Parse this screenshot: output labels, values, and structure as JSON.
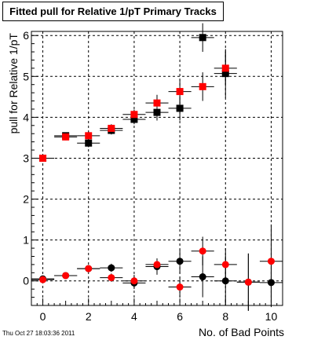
{
  "footer": {
    "timestamp": "Thu Oct 27 18:03:36 2011"
  },
  "chart_data": {
    "type": "scatter",
    "title": "Fitted pull for Relative 1/pT Primary Tracks",
    "xlabel": "No. of Bad Points",
    "ylabel": "pull for Relative 1/pT",
    "xlim": [
      -0.5,
      10.5
    ],
    "ylim": [
      -0.6,
      6.1
    ],
    "xticks": [
      0,
      2,
      4,
      6,
      8,
      10
    ],
    "yticks": [
      0,
      1,
      2,
      3,
      4,
      5,
      6
    ],
    "grid": true,
    "colors": {
      "black": "#000000",
      "red": "#ff0000"
    },
    "series": [
      {
        "marker": "square",
        "color": "#000000",
        "points": [
          {
            "x": 0,
            "y": 3.0,
            "ey": 0.05
          },
          {
            "x": 1,
            "y": 3.55,
            "ey": 0.08
          },
          {
            "x": 2,
            "y": 3.37,
            "ey": 0.1
          },
          {
            "x": 3,
            "y": 3.68,
            "ey": 0.1
          },
          {
            "x": 4,
            "y": 3.95,
            "ey": 0.12
          },
          {
            "x": 5,
            "y": 4.12,
            "ey": 0.2
          },
          {
            "x": 6,
            "y": 4.22,
            "ey": 0.3
          },
          {
            "x": 7,
            "y": 5.95,
            "ey": 0.35
          },
          {
            "x": 8,
            "y": 5.07,
            "ey": 0.6
          }
        ]
      },
      {
        "marker": "square",
        "color": "#ff0000",
        "points": [
          {
            "x": 0,
            "y": 3.0,
            "ey": 0.05
          },
          {
            "x": 1,
            "y": 3.52,
            "ey": 0.08
          },
          {
            "x": 2,
            "y": 3.55,
            "ey": 0.1
          },
          {
            "x": 3,
            "y": 3.73,
            "ey": 0.1
          },
          {
            "x": 4,
            "y": 4.07,
            "ey": 0.12
          },
          {
            "x": 5,
            "y": 4.35,
            "ey": 0.2
          },
          {
            "x": 6,
            "y": 4.63,
            "ey": 0.3
          },
          {
            "x": 7,
            "y": 4.75,
            "ey": 0.35
          },
          {
            "x": 8,
            "y": 5.2,
            "ey": 0.4
          }
        ]
      },
      {
        "marker": "circle",
        "color": "#000000",
        "points": [
          {
            "x": 0,
            "y": 0.05,
            "ey": 0.03
          },
          {
            "x": 1,
            "y": 0.13,
            "ey": 0.05
          },
          {
            "x": 2,
            "y": 0.3,
            "ey": 0.08
          },
          {
            "x": 3,
            "y": 0.32,
            "ey": 0.1
          },
          {
            "x": 4,
            "y": -0.05,
            "ey": 0.15
          },
          {
            "x": 5,
            "y": 0.35,
            "ey": 0.2
          },
          {
            "x": 6,
            "y": 0.48,
            "ey": 0.3
          },
          {
            "x": 7,
            "y": 0.1,
            "ey": 0.5
          },
          {
            "x": 8,
            "y": 0.0,
            "ey": 0.6
          },
          {
            "x": 9,
            "y": -0.03,
            "ey": 0.7
          },
          {
            "x": 10,
            "y": -0.04,
            "ey": 0.6
          }
        ]
      },
      {
        "marker": "circle",
        "color": "#ff0000",
        "points": [
          {
            "x": 0,
            "y": 0.03,
            "ey": 0.03
          },
          {
            "x": 1,
            "y": 0.13,
            "ey": 0.05
          },
          {
            "x": 2,
            "y": 0.3,
            "ey": 0.08
          },
          {
            "x": 3,
            "y": 0.08,
            "ey": 0.1
          },
          {
            "x": 4,
            "y": 0.0,
            "ey": 0.15
          },
          {
            "x": 5,
            "y": 0.4,
            "ey": 0.15
          },
          {
            "x": 6,
            "y": -0.15,
            "ey": 0.25
          },
          {
            "x": 7,
            "y": 0.73,
            "ey": 0.35
          },
          {
            "x": 8,
            "y": 0.4,
            "ey": 0.4
          },
          {
            "x": 9,
            "y": -0.03,
            "ey": 0.7
          },
          {
            "x": 10,
            "y": 0.48,
            "ey": 0.9
          }
        ]
      }
    ]
  }
}
